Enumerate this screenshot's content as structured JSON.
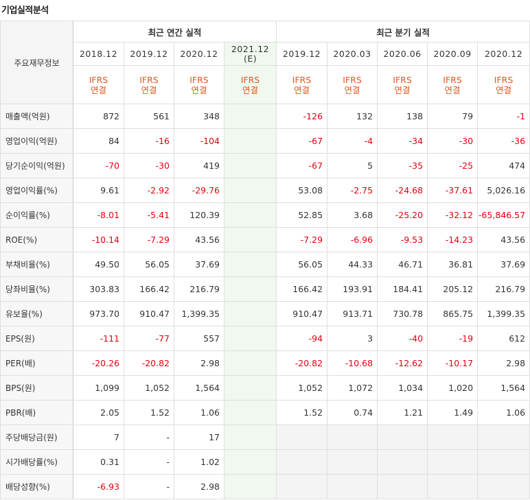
{
  "title": "기업실적분석",
  "header": {
    "row_label": "주요재무정보",
    "annual_group": "최근 연간 실적",
    "quarter_group": "최근 분기 실적",
    "annual_years": [
      "2018.12",
      "2019.12",
      "2020.12",
      "2021.12"
    ],
    "annual_estimate_mark": "(E)",
    "quarter_years": [
      "2019.12",
      "2020.03",
      "2020.06",
      "2020.09",
      "2020.12"
    ],
    "ifrs_top": "IFRS",
    "ifrs_bottom": "연결"
  },
  "rows": [
    {
      "label": "매출액(억원)",
      "annual": [
        "872",
        "561",
        "348",
        ""
      ],
      "quarter": [
        "-126",
        "132",
        "138",
        "79",
        "-1"
      ]
    },
    {
      "label": "영업이익(억원)",
      "annual": [
        "84",
        "-16",
        "-104",
        ""
      ],
      "quarter": [
        "-67",
        "-4",
        "-34",
        "-30",
        "-36"
      ]
    },
    {
      "label": "당기순이익(억원)",
      "annual": [
        "-70",
        "-30",
        "419",
        ""
      ],
      "quarter": [
        "-67",
        "5",
        "-35",
        "-25",
        "474"
      ]
    },
    {
      "label": "영업이익률(%)",
      "annual": [
        "9.61",
        "-2.92",
        "-29.76",
        ""
      ],
      "quarter": [
        "53.08",
        "-2.75",
        "-24.68",
        "-37.61",
        "5,026.16"
      ]
    },
    {
      "label": "순이익률(%)",
      "annual": [
        "-8.01",
        "-5.41",
        "120.39",
        ""
      ],
      "quarter": [
        "52.85",
        "3.68",
        "-25.20",
        "-32.12",
        "-65,846.57"
      ]
    },
    {
      "label": "ROE(%)",
      "annual": [
        "-10.14",
        "-7.29",
        "43.56",
        ""
      ],
      "quarter": [
        "-7.29",
        "-6.96",
        "-9.53",
        "-14.23",
        "43.56"
      ]
    },
    {
      "label": "부채비율(%)",
      "annual": [
        "49.50",
        "56.05",
        "37.69",
        ""
      ],
      "quarter": [
        "56.05",
        "44.33",
        "46.71",
        "36.81",
        "37.69"
      ]
    },
    {
      "label": "당좌비율(%)",
      "annual": [
        "303.83",
        "166.42",
        "216.79",
        ""
      ],
      "quarter": [
        "166.42",
        "193.91",
        "184.41",
        "205.12",
        "216.79"
      ]
    },
    {
      "label": "유보율(%)",
      "annual": [
        "973.70",
        "910.47",
        "1,399.35",
        ""
      ],
      "quarter": [
        "910.47",
        "913.71",
        "730.78",
        "865.75",
        "1,399.35"
      ]
    },
    {
      "label": "EPS(원)",
      "annual": [
        "-111",
        "-77",
        "557",
        ""
      ],
      "quarter": [
        "-94",
        "3",
        "-40",
        "-19",
        "612"
      ]
    },
    {
      "label": "PER(배)",
      "annual": [
        "-20.26",
        "-20.82",
        "2.98",
        ""
      ],
      "quarter": [
        "-20.82",
        "-10.68",
        "-12.62",
        "-10.17",
        "2.98"
      ]
    },
    {
      "label": "BPS(원)",
      "annual": [
        "1,099",
        "1,052",
        "1,564",
        ""
      ],
      "quarter": [
        "1,052",
        "1,072",
        "1,034",
        "1,020",
        "1,564"
      ]
    },
    {
      "label": "PBR(배)",
      "annual": [
        "2.05",
        "1.52",
        "1.06",
        ""
      ],
      "quarter": [
        "1.52",
        "0.74",
        "1.21",
        "1.49",
        "1.06"
      ]
    },
    {
      "label": "주당배당금(원)",
      "annual": [
        "7",
        "-",
        "17",
        ""
      ],
      "quarter": [
        "",
        "",
        "",
        "",
        ""
      ]
    },
    {
      "label": "시가배당률(%)",
      "annual": [
        "0.31",
        "-",
        "1.02",
        ""
      ],
      "quarter": [
        "",
        "",
        "",
        "",
        ""
      ]
    },
    {
      "label": "배당성향(%)",
      "annual": [
        "-6.93",
        "-",
        "2.98",
        ""
      ],
      "quarter": [
        "",
        "",
        "",
        "",
        ""
      ]
    }
  ]
}
